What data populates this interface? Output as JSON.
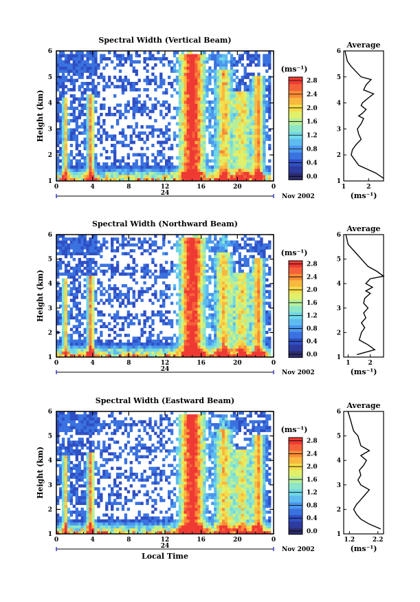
{
  "colors": {
    "scale": [
      "#2c2c6e",
      "#2d3a9e",
      "#2f4fc4",
      "#3a72e0",
      "#4b97ec",
      "#5dbbf0",
      "#6fd8e8",
      "#8de6c8",
      "#b7ef9a",
      "#e0f06a",
      "#f5dc4a",
      "#f9b83e",
      "#f98c36",
      "#f5613a",
      "#ef3a34"
    ],
    "masked": "#ffffff",
    "profile_line": "#000000"
  },
  "date_label": "Nov 2002",
  "charts": [
    {
      "id": "vertical",
      "title": "Spectral Width (Vertical Beam)",
      "xlabel": "",
      "ylabel": "Height (km)",
      "x_ticks": [
        "0",
        "4",
        "8",
        "12",
        "16",
        "20",
        "0"
      ],
      "x_range": [
        0,
        24
      ],
      "y_ticks": [
        "1",
        "2",
        "3",
        "4",
        "5",
        "6"
      ],
      "y_range": [
        1,
        6
      ],
      "day_label": "24",
      "colorbar": {
        "unit": "(ms⁻¹)",
        "min": 0.0,
        "max": 3.0,
        "ticks": [
          "0.0",
          "0.4",
          "0.8",
          "1.2",
          "1.6",
          "2.0",
          "2.4",
          "2.8"
        ]
      },
      "profile": {
        "title": "Average",
        "xlabel": "(ms⁻¹)",
        "x_ticks": [
          "1",
          "2"
        ],
        "x_range": [
          1.0,
          2.6
        ],
        "y_ticks": [
          "1",
          "2",
          "3",
          "4",
          "5",
          "6"
        ],
        "y_range": [
          1,
          6
        ],
        "x": [
          2.6,
          2.3,
          1.6,
          1.3,
          1.35,
          1.5,
          1.7,
          1.6,
          1.55,
          1.7,
          1.8,
          1.6,
          1.75,
          1.9,
          1.7,
          1.75,
          2.0,
          2.2,
          1.8,
          1.9,
          2.1,
          1.7,
          1.5,
          1.3,
          1.15,
          1.1,
          1.05
        ],
        "y": [
          1.1,
          1.3,
          1.6,
          2.0,
          2.2,
          2.4,
          2.6,
          2.8,
          3.0,
          3.2,
          3.4,
          3.5,
          3.6,
          3.75,
          3.9,
          4.0,
          4.2,
          4.35,
          4.5,
          4.7,
          4.9,
          5.0,
          5.2,
          5.4,
          5.6,
          5.8,
          6.0
        ]
      }
    },
    {
      "id": "northward",
      "title": "Spectral Width (Northward Beam)",
      "xlabel": "",
      "ylabel": "Height (km)",
      "x_ticks": [
        "0",
        "4",
        "8",
        "12",
        "16",
        "20",
        "0"
      ],
      "x_range": [
        0,
        24
      ],
      "y_ticks": [
        "1",
        "2",
        "3",
        "4",
        "5",
        "6"
      ],
      "y_range": [
        1,
        6
      ],
      "day_label": "24",
      "colorbar": {
        "unit": "(ms⁻¹)",
        "min": 0.0,
        "max": 3.0,
        "ticks": [
          "0.0",
          "0.4",
          "0.8",
          "1.2",
          "1.6",
          "2.0",
          "2.4",
          "2.8"
        ]
      },
      "profile": {
        "title": "Average",
        "xlabel": "(ms⁻¹)",
        "x_ticks": [
          "1",
          "2"
        ],
        "x_range": [
          0.8,
          2.6
        ],
        "y_ticks": [
          "1",
          "2",
          "3",
          "4",
          "5",
          "6"
        ],
        "y_range": [
          1,
          6
        ],
        "x": [
          1.4,
          2.2,
          1.9,
          1.5,
          1.6,
          1.75,
          1.6,
          1.8,
          1.7,
          1.9,
          1.7,
          1.75,
          2.0,
          1.8,
          2.1,
          1.8,
          1.9,
          2.0,
          2.6,
          2.3,
          1.9,
          1.6,
          1.3,
          1.0,
          0.9
        ],
        "y": [
          1.1,
          1.3,
          1.5,
          1.7,
          2.0,
          2.2,
          2.4,
          2.6,
          2.8,
          3.0,
          3.2,
          3.4,
          3.6,
          3.7,
          3.85,
          4.0,
          4.1,
          4.2,
          4.3,
          4.5,
          4.7,
          5.0,
          5.3,
          5.6,
          6.0
        ]
      }
    },
    {
      "id": "eastward",
      "title": "Spectral Width (Eastward Beam)",
      "xlabel": "Local Time",
      "ylabel": "Height (km)",
      "x_ticks": [
        "0",
        "4",
        "8",
        "12",
        "16",
        "20",
        "0"
      ],
      "x_range": [
        0,
        24
      ],
      "y_ticks": [
        "1",
        "2",
        "3",
        "4",
        "5",
        "6"
      ],
      "y_range": [
        1,
        6
      ],
      "day_label": "24",
      "colorbar": {
        "unit": "(ms⁻¹)",
        "min": 0.0,
        "max": 3.0,
        "ticks": [
          "0.0",
          "0.4",
          "0.8",
          "1.2",
          "1.6",
          "2.0",
          "2.4",
          "2.8"
        ]
      },
      "profile": {
        "title": "Average",
        "xlabel": "(ms⁻¹)",
        "x_ticks": [
          "1.2",
          "2.2"
        ],
        "x_range": [
          1.0,
          2.4
        ],
        "y_ticks": [
          "1",
          "2",
          "3",
          "4",
          "5",
          "6"
        ],
        "y_range": [
          1,
          6
        ],
        "x": [
          2.3,
          1.9,
          1.6,
          1.45,
          1.35,
          1.45,
          1.6,
          1.75,
          1.9,
          1.6,
          1.5,
          1.6,
          1.55,
          1.7,
          1.8,
          1.6,
          1.75,
          1.9,
          1.6,
          1.55,
          1.5,
          1.35,
          1.3,
          1.25,
          1.2,
          1.15
        ],
        "y": [
          1.2,
          1.4,
          1.6,
          1.8,
          2.0,
          2.2,
          2.4,
          2.6,
          2.8,
          3.0,
          3.2,
          3.4,
          3.6,
          3.8,
          4.0,
          4.2,
          4.3,
          4.4,
          4.6,
          4.8,
          5.0,
          5.2,
          5.4,
          5.6,
          5.8,
          6.0
        ]
      }
    }
  ]
}
